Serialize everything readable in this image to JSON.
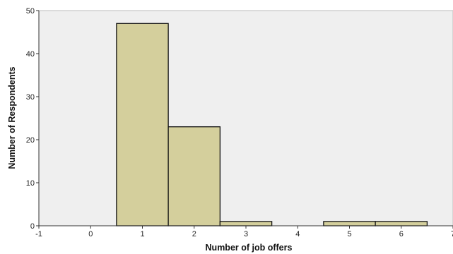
{
  "chart_data": {
    "type": "bar",
    "x": [
      1,
      2,
      3,
      5,
      6
    ],
    "values": [
      47,
      23,
      1,
      1,
      1
    ],
    "bin_width": 1,
    "xlabel": "Number of job offers",
    "ylabel": "Number of Respondents",
    "xlim": [
      -1,
      7
    ],
    "ylim": [
      0,
      50
    ],
    "x_ticks": [
      -1,
      0,
      1,
      2,
      3,
      4,
      5,
      6,
      7
    ],
    "y_ticks": [
      0,
      10,
      20,
      30,
      40,
      50
    ],
    "grid": false,
    "colors": {
      "bar_fill": "#d4cf9c",
      "bar_stroke": "#111111",
      "plot_background": "#efefef",
      "axis": "#333333"
    }
  }
}
